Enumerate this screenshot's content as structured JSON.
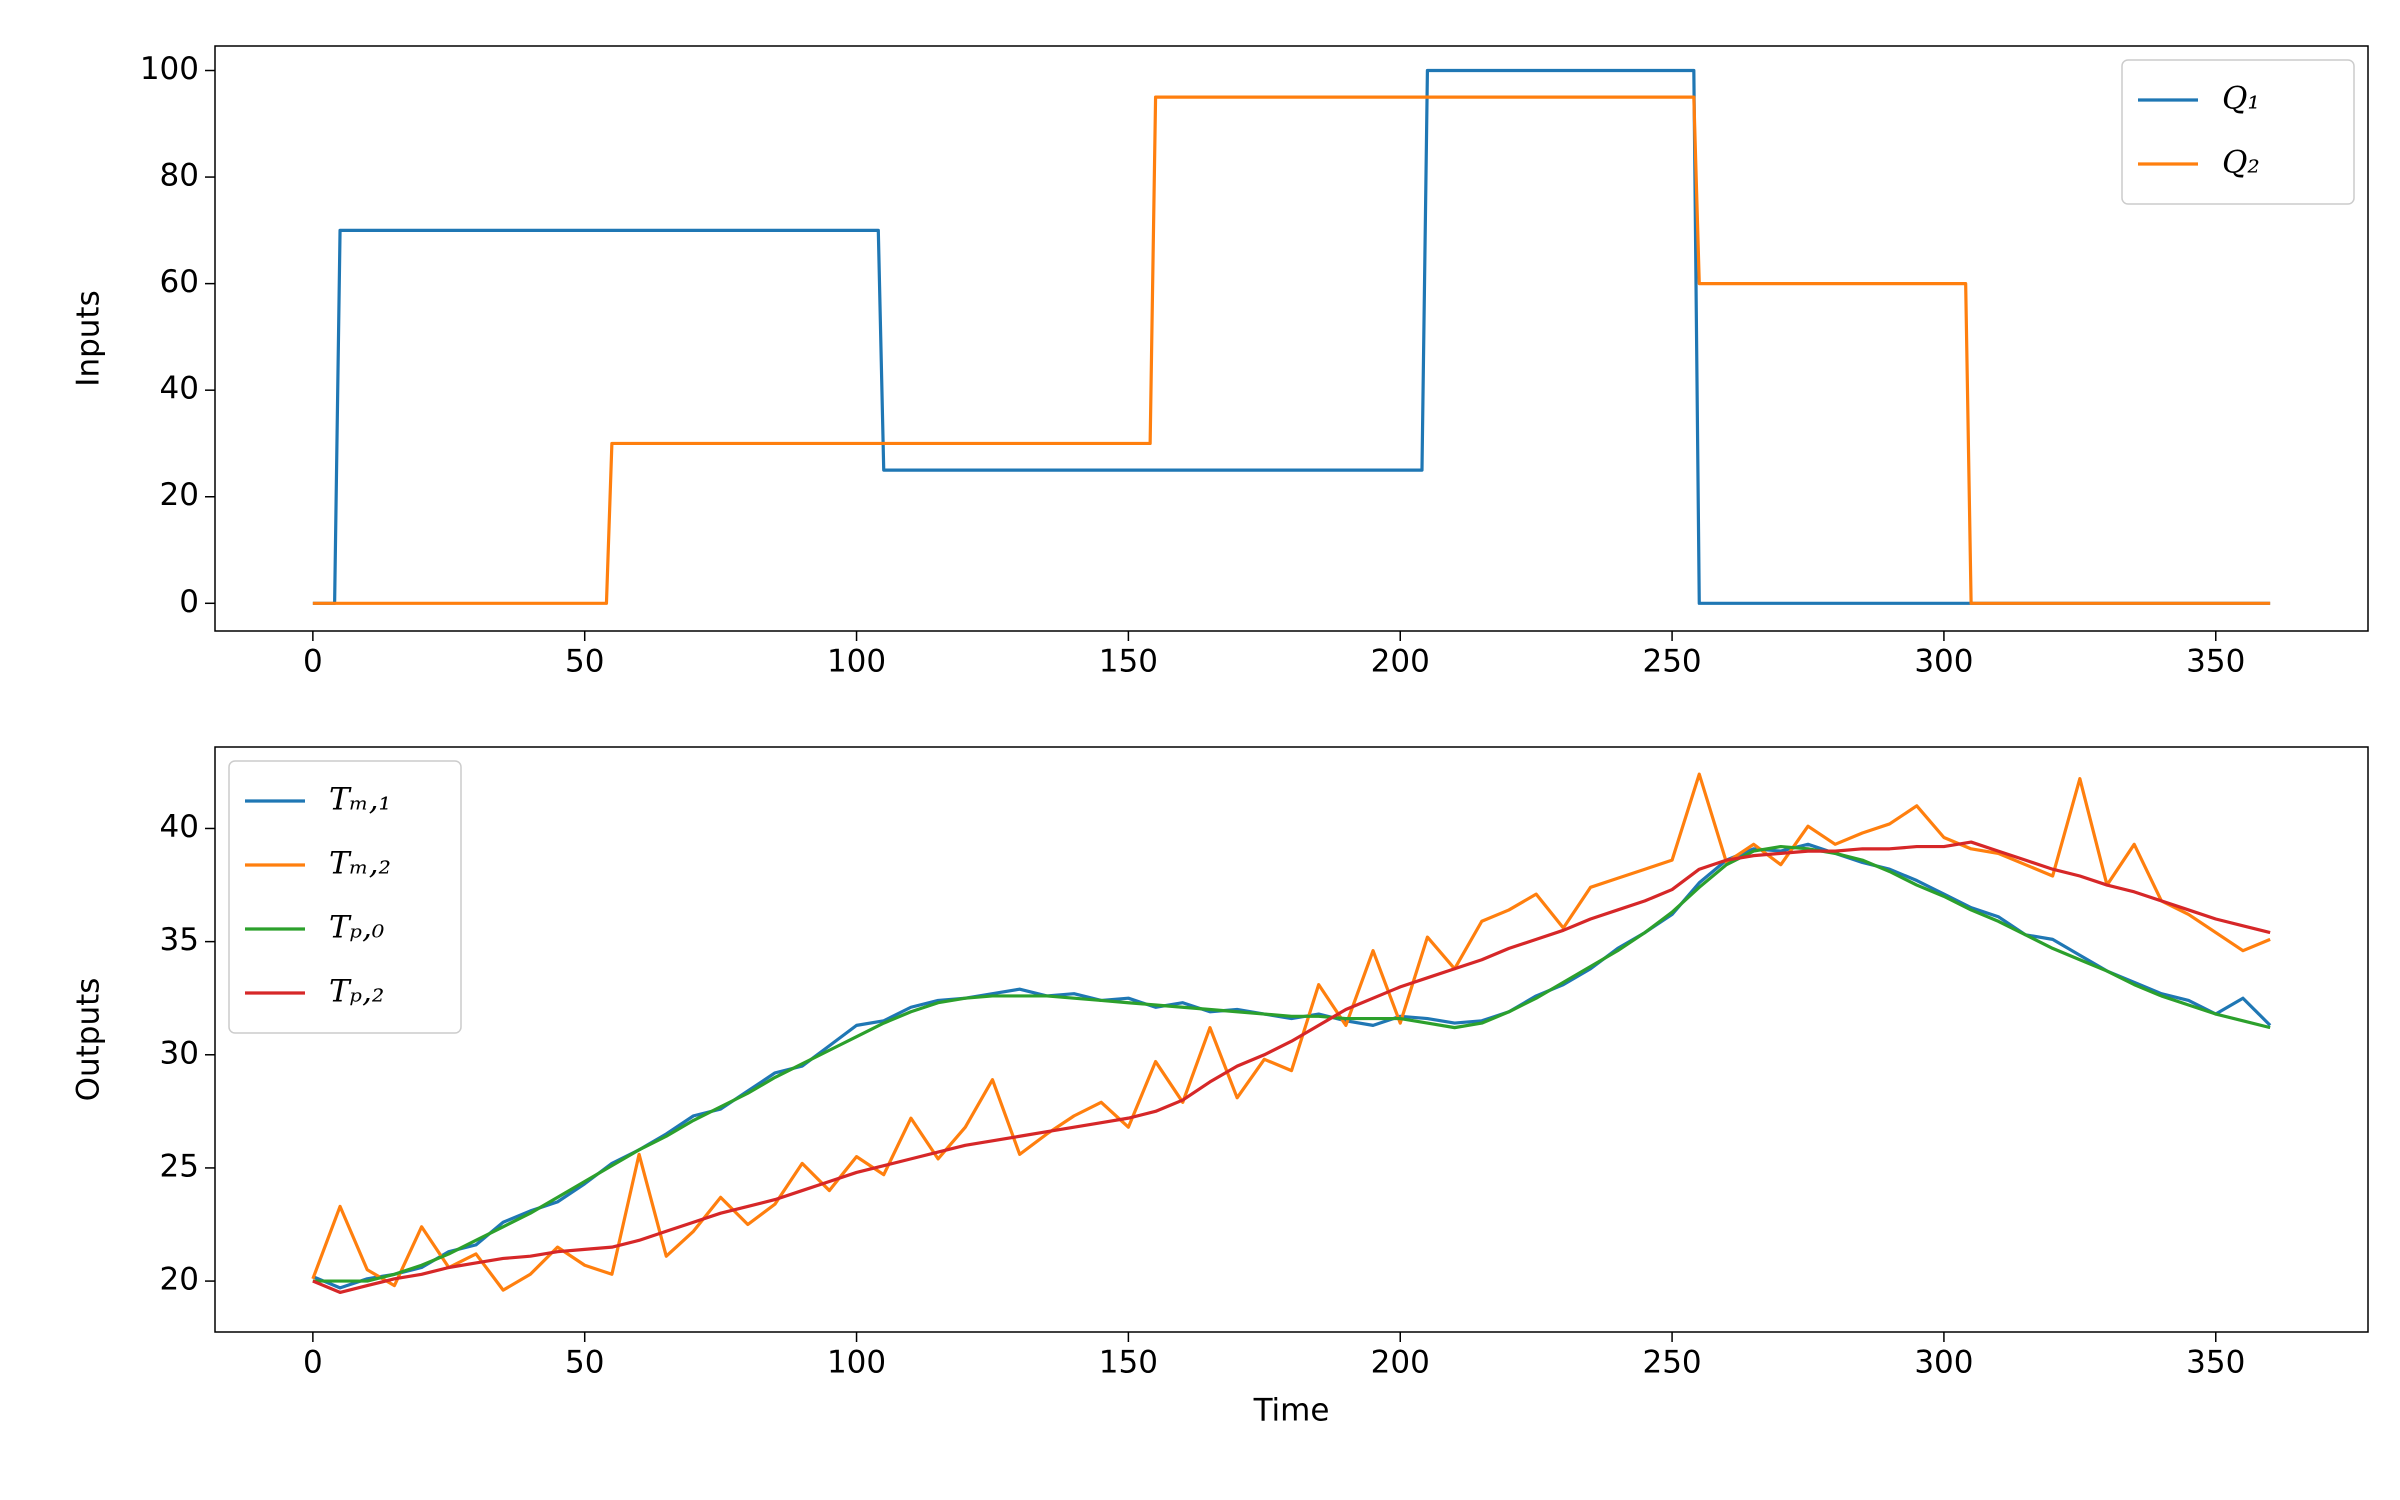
{
  "chart_data": [
    {
      "type": "line",
      "ylabel": "Inputs",
      "x": [
        0,
        4,
        5,
        54,
        55,
        104,
        105,
        154,
        155,
        204,
        205,
        254,
        255,
        304,
        305,
        360
      ],
      "series": [
        {
          "name": "Q₁",
          "color": "#1f77b4",
          "values": [
            0,
            0,
            70,
            70,
            70,
            70,
            25,
            25,
            25,
            25,
            100,
            100,
            0,
            0,
            0,
            0
          ]
        },
        {
          "name": "Q₂",
          "color": "#ff7f0e",
          "values": [
            0,
            0,
            0,
            0,
            30,
            30,
            30,
            30,
            95,
            95,
            95,
            95,
            60,
            60,
            0,
            0
          ]
        }
      ],
      "xlim": [
        -18,
        378
      ],
      "ylim": [
        -5.2,
        104.6
      ],
      "xticks": [
        0,
        50,
        100,
        150,
        200,
        250,
        300,
        350
      ],
      "yticks": [
        0,
        20,
        40,
        60,
        80,
        100
      ],
      "legend": "upper right"
    },
    {
      "type": "line",
      "xlabel": "Time",
      "ylabel": "Outputs",
      "x": [
        0,
        5,
        10,
        15,
        20,
        25,
        30,
        35,
        40,
        45,
        50,
        55,
        60,
        65,
        70,
        75,
        80,
        85,
        90,
        95,
        100,
        105,
        110,
        115,
        120,
        125,
        130,
        135,
        140,
        145,
        150,
        155,
        160,
        165,
        170,
        175,
        180,
        185,
        190,
        195,
        200,
        205,
        210,
        215,
        220,
        225,
        230,
        235,
        240,
        245,
        250,
        255,
        260,
        265,
        270,
        275,
        280,
        285,
        290,
        295,
        300,
        305,
        310,
        315,
        320,
        325,
        330,
        335,
        340,
        345,
        350,
        355,
        360
      ],
      "series": [
        {
          "name": "Tₘ,₁",
          "color": "#1f77b4",
          "values": [
            20.2,
            19.7,
            20.1,
            20.3,
            20.6,
            21.3,
            21.6,
            22.6,
            23.1,
            23.5,
            24.3,
            25.2,
            25.8,
            26.5,
            27.3,
            27.6,
            28.4,
            29.2,
            29.5,
            30.4,
            31.3,
            31.5,
            32.1,
            32.4,
            32.5,
            32.7,
            32.9,
            32.6,
            32.7,
            32.4,
            32.5,
            32.1,
            32.3,
            31.9,
            32,
            31.8,
            31.6,
            31.8,
            31.5,
            31.3,
            31.7,
            31.6,
            31.4,
            31.5,
            31.9,
            32.6,
            33.1,
            33.8,
            34.7,
            35.4,
            36.2,
            37.6,
            38.6,
            39.1,
            39,
            39.3,
            38.9,
            38.5,
            38.2,
            37.7,
            37.1,
            36.5,
            36.1,
            35.3,
            35.1,
            34.4,
            33.7,
            33.2,
            32.7,
            32.4,
            31.8,
            32.5,
            31.3
          ]
        },
        {
          "name": "Tₘ,₂",
          "color": "#ff7f0e",
          "values": [
            20.1,
            23.3,
            20.5,
            19.8,
            22.4,
            20.6,
            21.2,
            19.6,
            20.3,
            21.5,
            20.7,
            20.3,
            25.6,
            21.1,
            22.2,
            23.7,
            22.5,
            23.4,
            25.2,
            24.0,
            25.5,
            24.7,
            27.2,
            25.4,
            26.8,
            28.9,
            25.6,
            26.5,
            27.3,
            27.9,
            26.8,
            29.7,
            27.9,
            31.2,
            28.1,
            29.8,
            29.3,
            33.1,
            31.3,
            34.6,
            31.4,
            35.2,
            33.8,
            35.9,
            36.4,
            37.1,
            35.6,
            37.4,
            37.8,
            38.2,
            38.6,
            42.4,
            38.5,
            39.3,
            38.4,
            40.1,
            39.3,
            39.8,
            40.2,
            41.0,
            39.6,
            39.1,
            38.9,
            38.4,
            37.9,
            42.2,
            37.5,
            39.3,
            36.8,
            36.2,
            35.4,
            34.6,
            35.1
          ]
        },
        {
          "name": "Tₚ,₀",
          "color": "#2ca02c",
          "values": [
            20,
            20,
            20,
            20.3,
            20.7,
            21.2,
            21.8,
            22.4,
            23,
            23.7,
            24.4,
            25.1,
            25.8,
            26.4,
            27.1,
            27.7,
            28.3,
            29,
            29.6,
            30.2,
            30.8,
            31.4,
            31.9,
            32.3,
            32.5,
            32.6,
            32.6,
            32.6,
            32.5,
            32.4,
            32.3,
            32.2,
            32.1,
            32,
            31.9,
            31.8,
            31.7,
            31.7,
            31.6,
            31.6,
            31.6,
            31.4,
            31.2,
            31.4,
            31.9,
            32.5,
            33.2,
            33.9,
            34.6,
            35.4,
            36.3,
            37.4,
            38.4,
            39,
            39.2,
            39.1,
            38.9,
            38.6,
            38.1,
            37.5,
            37,
            36.4,
            35.9,
            35.3,
            34.7,
            34.2,
            33.7,
            33.1,
            32.6,
            32.2,
            31.8,
            31.5,
            31.2
          ]
        },
        {
          "name": "Tₚ,₂",
          "color": "#d62728",
          "values": [
            20,
            19.5,
            19.8,
            20.1,
            20.3,
            20.6,
            20.8,
            21,
            21.1,
            21.3,
            21.4,
            21.5,
            21.8,
            22.2,
            22.6,
            23,
            23.3,
            23.6,
            24,
            24.4,
            24.8,
            25.1,
            25.4,
            25.7,
            26,
            26.2,
            26.4,
            26.6,
            26.8,
            27,
            27.2,
            27.5,
            28,
            28.8,
            29.5,
            30,
            30.6,
            31.3,
            32,
            32.5,
            33,
            33.4,
            33.8,
            34.2,
            34.7,
            35.1,
            35.5,
            36,
            36.4,
            36.8,
            37.3,
            38.2,
            38.6,
            38.8,
            38.9,
            39,
            39,
            39.1,
            39.1,
            39.2,
            39.2,
            39.4,
            39,
            38.6,
            38.2,
            37.9,
            37.5,
            37.2,
            36.8,
            36.4,
            36,
            35.7,
            35.4
          ]
        }
      ],
      "xlim": [
        -18,
        378
      ],
      "ylim": [
        17.75,
        43.6
      ],
      "xticks": [
        0,
        50,
        100,
        150,
        200,
        250,
        300,
        350
      ],
      "yticks": [
        20,
        25,
        30,
        35,
        40
      ],
      "legend": "upper left"
    }
  ]
}
